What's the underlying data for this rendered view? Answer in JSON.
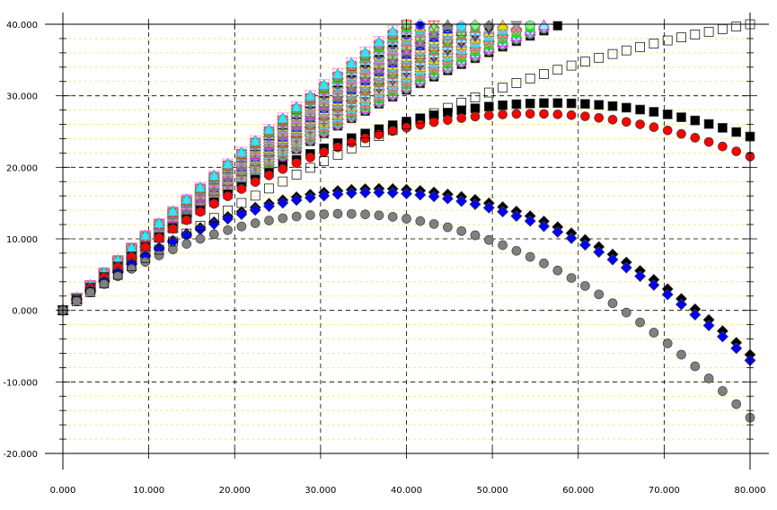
{
  "chart_data": {
    "type": "scatter",
    "title": "",
    "xlabel": "",
    "ylabel": "",
    "xlim": [
      0,
      80
    ],
    "ylim": [
      -20,
      40
    ],
    "grid": true,
    "x_tick_labels": [
      "0.000",
      "10.000",
      "20.000",
      "30.000",
      "40.000",
      "50.000",
      "60.000",
      "70.000",
      "80.000"
    ],
    "y_tick_labels": [
      "40.000",
      "30.000",
      "20.000",
      "10.000",
      "0.000",
      "-10.000",
      "-20.000"
    ],
    "x_ticks": [
      0,
      10,
      20,
      30,
      40,
      50,
      60,
      70,
      80
    ],
    "y_ticks": [
      40,
      30,
      20,
      10,
      0,
      -10,
      -20
    ],
    "x_step": 1.6,
    "series_count": 60,
    "series_model": "y = v*x - a*x^2 (projectile-like trajectories), v from 0.95 to 1.12, a from 0.0026 to 0.0045",
    "highlighted_series": [
      {
        "name": "black-square",
        "end_value": 24.3,
        "peak_value": 29.0,
        "marker": "square",
        "color": "#000000"
      },
      {
        "name": "red-circle",
        "end_value": 21.5,
        "peak_value": 27.5,
        "marker": "circle",
        "color": "#ff0000"
      },
      {
        "name": "black-diamond",
        "end_value": -6.2,
        "peak_value": 17.0,
        "marker": "diamond",
        "color": "#000000"
      },
      {
        "name": "blue-diamond",
        "end_value": -7.0,
        "peak_value": 16.5,
        "marker": "diamond",
        "color": "#0000ff"
      },
      {
        "name": "gray-circle",
        "end_value": -15.0,
        "peak_value": 13.5,
        "marker": "circle",
        "color": "#808080"
      },
      {
        "name": "open-square-top",
        "end_value": 40.0,
        "peak_value": 40.0,
        "marker": "square-open",
        "color": "#000000"
      }
    ],
    "palette": [
      "#000000",
      "#ff0000",
      "#0000ff",
      "#00ff00",
      "#ffff00",
      "#ff00ff",
      "#00ffff",
      "#808080",
      "#ff8080",
      "#8080ff",
      "#80ff80",
      "#ffd700",
      "#c08040",
      "#ff80ff",
      "#80ffff",
      "#a0a0a0"
    ]
  }
}
